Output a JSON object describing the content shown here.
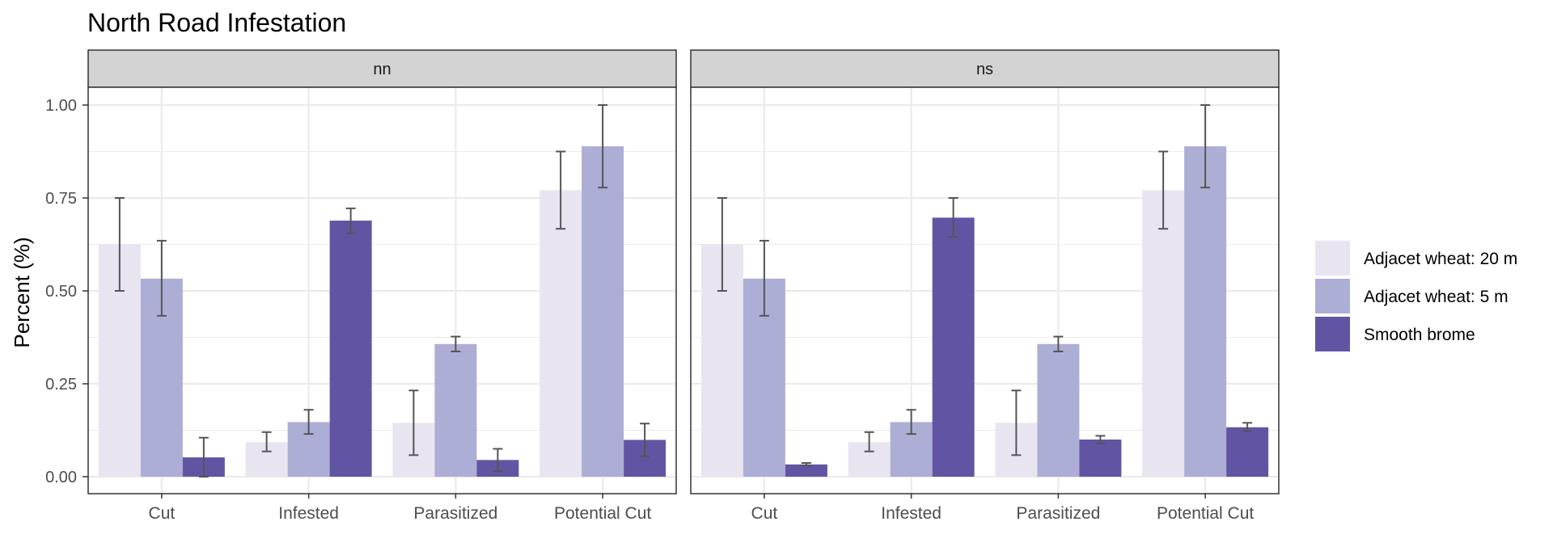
{
  "title": "North Road Infestation",
  "y_axis_label": "Percent (%)",
  "colors": {
    "Adjacet wheat: 20 m": "#e8e5f0",
    "Adjacet wheat: 5 m": "#adaed6",
    "Smooth brome": "#6155a3",
    "strip_bg": "#d3d3d3",
    "grid": "#ebebeb",
    "error_bar": "#555555"
  },
  "chart_data": {
    "type": "bar",
    "title": "North Road Infestation",
    "xlabel": "",
    "ylabel": "Percent (%)",
    "ylim": [
      -0.04,
      1.12
    ],
    "y_ticks": [
      0.0,
      0.25,
      0.5,
      0.75,
      1.0
    ],
    "y_tick_labels": [
      "0.00",
      "0.25",
      "0.50",
      "0.75",
      "1.00"
    ],
    "categories": [
      "Cut",
      "Infested",
      "Parasitized",
      "Potential Cut"
    ],
    "grid": true,
    "legend_position": "right",
    "legend": [
      "Adjacet wheat: 20 m",
      "Adjacet wheat: 5 m",
      "Smooth brome"
    ],
    "panels": [
      {
        "label": "nn",
        "series": [
          {
            "name": "Adjacet wheat: 20 m",
            "values": [
              0.625,
              0.093,
              0.145,
              0.771
            ],
            "err_low": [
              0.5,
              0.068,
              0.058,
              0.667
            ],
            "err_high": [
              0.75,
              0.12,
              0.232,
              0.875
            ]
          },
          {
            "name": "Adjacet wheat: 5 m",
            "values": [
              0.533,
              0.147,
              0.357,
              0.889
            ],
            "err_low": [
              0.433,
              0.115,
              0.337,
              0.778
            ],
            "err_high": [
              0.635,
              0.18,
              0.377,
              1.0
            ]
          },
          {
            "name": "Smooth brome",
            "values": [
              0.052,
              0.689,
              0.045,
              0.099
            ],
            "err_low": [
              0.0,
              0.655,
              0.015,
              0.055
            ],
            "err_high": [
              0.105,
              0.722,
              0.075,
              0.143
            ]
          }
        ]
      },
      {
        "label": "ns",
        "series": [
          {
            "name": "Adjacet wheat: 20 m",
            "values": [
              0.625,
              0.093,
              0.145,
              0.771
            ],
            "err_low": [
              0.5,
              0.068,
              0.058,
              0.667
            ],
            "err_high": [
              0.75,
              0.12,
              0.232,
              0.875
            ]
          },
          {
            "name": "Adjacet wheat: 5 m",
            "values": [
              0.533,
              0.147,
              0.357,
              0.889
            ],
            "err_low": [
              0.433,
              0.115,
              0.337,
              0.778
            ],
            "err_high": [
              0.635,
              0.18,
              0.377,
              1.0
            ]
          },
          {
            "name": "Smooth brome",
            "values": [
              0.033,
              0.697,
              0.1,
              0.133
            ],
            "err_low": [
              0.03,
              0.645,
              0.09,
              0.122
            ],
            "err_high": [
              0.037,
              0.75,
              0.11,
              0.145
            ]
          }
        ]
      }
    ]
  }
}
